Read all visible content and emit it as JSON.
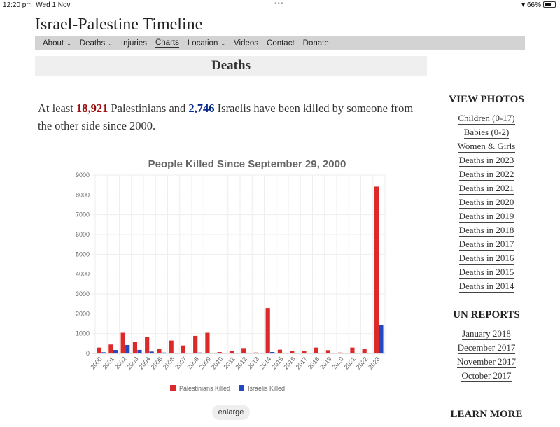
{
  "status_bar": {
    "time": "12:20 pm",
    "date": "Wed 1 Nov",
    "battery": "66%",
    "battery_level": 0.66
  },
  "site_title": "Israel-Palestine Timeline",
  "nav": [
    {
      "label": "About",
      "dropdown": true
    },
    {
      "label": "Deaths",
      "dropdown": true
    },
    {
      "label": "Injuries"
    },
    {
      "label": "Charts",
      "active": true
    },
    {
      "label": "Location",
      "dropdown": true
    },
    {
      "label": "Videos"
    },
    {
      "label": "Contact"
    },
    {
      "label": "Donate"
    }
  ],
  "page_heading": "Deaths",
  "intro": {
    "p1": "At least ",
    "pal_count": "18,921",
    "p2": " Palestinians and ",
    "isr_count": "2,746",
    "p3": " Israelis have been killed by someone from the other side since 2000."
  },
  "enlarge_label": "enlarge",
  "sidebar": {
    "view_photos": {
      "title": "VIEW PHOTOS",
      "links": [
        "Children (0-17)",
        "Babies (0-2)",
        "Women & Girls",
        "Deaths in 2023",
        "Deaths in 2022",
        "Deaths in 2021",
        "Deaths in 2020",
        "Deaths in 2019",
        "Deaths in 2018",
        "Deaths in 2017",
        "Deaths in 2016",
        "Deaths in 2015",
        "Deaths in 2014"
      ]
    },
    "un_reports": {
      "title": "UN REPORTS",
      "links": [
        "January 2018",
        "December 2017",
        "November 2017",
        "October 2017"
      ]
    },
    "learn_more": {
      "title": "LEARN MORE"
    }
  },
  "chart_data": {
    "type": "bar",
    "title": "People Killed Since September 29, 2000",
    "categories": [
      "2000",
      "2001",
      "2002",
      "2003",
      "2004",
      "2005",
      "2006",
      "2007",
      "2008",
      "2009",
      "2010",
      "2011",
      "2012",
      "2013",
      "2014",
      "2015",
      "2016",
      "2017",
      "2018",
      "2019",
      "2020",
      "2021",
      "2022",
      "2023"
    ],
    "series": [
      {
        "name": "Palestinians Killed",
        "color": "#dc2a2a",
        "values": [
          295,
          450,
          1040,
          590,
          815,
          210,
          650,
          400,
          885,
          1040,
          70,
          130,
          270,
          45,
          2290,
          190,
          130,
          105,
          295,
          165,
          45,
          295,
          210,
          8420
        ]
      },
      {
        "name": "Israelis Killed",
        "color": "#2448c0",
        "values": [
          60,
          175,
          425,
          180,
          95,
          45,
          15,
          10,
          45,
          10,
          5,
          10,
          5,
          5,
          70,
          25,
          15,
          15,
          5,
          5,
          5,
          15,
          30,
          1430
        ]
      }
    ],
    "ylim": [
      0,
      9000
    ],
    "yticks": [
      0,
      1000,
      2000,
      3000,
      4000,
      5000,
      6000,
      7000,
      8000,
      9000
    ],
    "grid": true,
    "legend": "bottom"
  }
}
